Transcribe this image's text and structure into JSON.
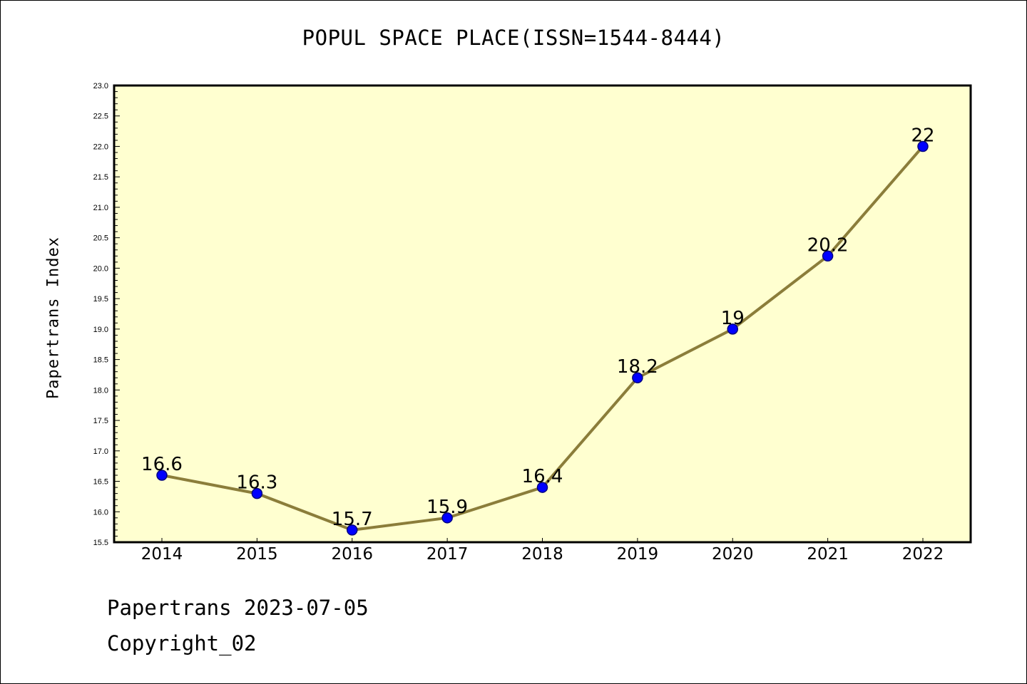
{
  "chart_data": {
    "type": "line",
    "title": "POPUL SPACE PLACE(ISSN=1544-8444)",
    "xlabel": "",
    "ylabel": "Papertrans Index",
    "categories": [
      "2014",
      "2015",
      "2016",
      "2017",
      "2018",
      "2019",
      "2020",
      "2021",
      "2022"
    ],
    "series": [
      {
        "values": [
          16.6,
          16.3,
          15.7,
          15.9,
          16.4,
          18.2,
          19,
          20.2,
          22
        ],
        "labels": [
          "16.6",
          "16.3",
          "15.7",
          "15.9",
          "16.4",
          "18.2",
          "19",
          "20.2",
          "22"
        ]
      }
    ],
    "ylim": [
      15.5,
      23.0
    ],
    "yticks": [
      "15.5",
      "16.0",
      "16.5",
      "17.0",
      "17.5",
      "18.0",
      "18.5",
      "19.0",
      "19.5",
      "20.0",
      "20.5",
      "21.0",
      "21.5",
      "22.0",
      "22.5",
      "23.0"
    ],
    "grid": false,
    "legend": "none",
    "colors": {
      "plot_background": "#ffffd0",
      "line": "#8b7d3a",
      "marker_fill": "#0000ff",
      "marker_edge": "#000080"
    }
  },
  "footer": {
    "date_text": "Papertrans 2023-07-05",
    "copyright_text": "Copyright_02"
  }
}
